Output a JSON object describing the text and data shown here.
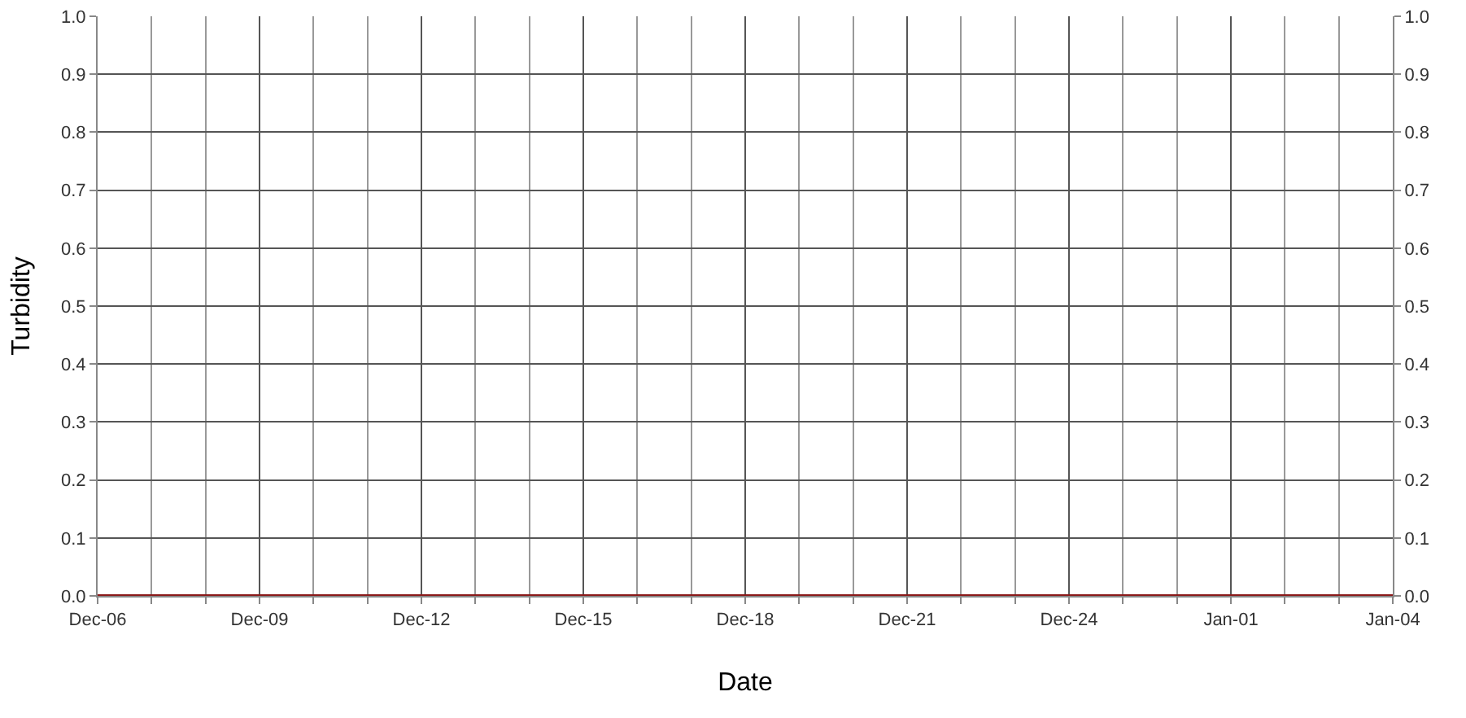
{
  "chart_data": {
    "type": "line",
    "xlabel": "Date",
    "ylabel": "Turbidity",
    "categories": [
      "Dec-06",
      null,
      null,
      "Dec-09",
      null,
      null,
      "Dec-12",
      null,
      null,
      "Dec-15",
      null,
      null,
      "Dec-18",
      null,
      null,
      "Dec-21",
      null,
      null,
      "Dec-24",
      null,
      null,
      "Jan-01",
      null,
      null,
      "Jan-04"
    ],
    "series": [
      {
        "color": "#8b1a1a",
        "values": [
          0,
          0,
          0,
          0,
          0,
          0,
          0,
          0,
          0,
          0,
          0,
          0,
          0,
          0,
          0,
          0,
          0,
          0,
          0,
          0,
          0,
          0,
          0,
          0,
          0
        ]
      }
    ],
    "ylim": [
      0,
      1
    ],
    "yticks": [
      {
        "value": 0,
        "label": "0.0"
      },
      {
        "value": 0.1,
        "label": "0.1"
      },
      {
        "value": 0.2,
        "label": "0.2"
      },
      {
        "value": 0.3,
        "label": "0.3"
      },
      {
        "value": 0.4,
        "label": "0.4"
      },
      {
        "value": 0.5,
        "label": "0.5"
      },
      {
        "value": 0.6,
        "label": "0.6"
      },
      {
        "value": 0.7,
        "label": "0.7"
      },
      {
        "value": 0.8,
        "label": "0.8"
      },
      {
        "value": 0.9,
        "label": "0.9"
      },
      {
        "value": 1,
        "label": "1.0"
      }
    ],
    "y2lim": [
      0,
      1
    ],
    "y2ticks": [
      {
        "value": 0,
        "label": "0.0"
      },
      {
        "value": 0.1,
        "label": "0.1"
      },
      {
        "value": 0.2,
        "label": "0.2"
      },
      {
        "value": 0.3,
        "label": "0.3"
      },
      {
        "value": 0.4,
        "label": "0.4"
      },
      {
        "value": 0.5,
        "label": "0.5"
      },
      {
        "value": 0.6,
        "label": "0.6"
      },
      {
        "value": 0.7,
        "label": "0.7"
      },
      {
        "value": 0.8,
        "label": "0.8"
      },
      {
        "value": 0.9,
        "label": "0.9"
      },
      {
        "value": 1,
        "label": "1.0"
      }
    ],
    "grid": true,
    "marker": "none",
    "line_style": "solid"
  }
}
